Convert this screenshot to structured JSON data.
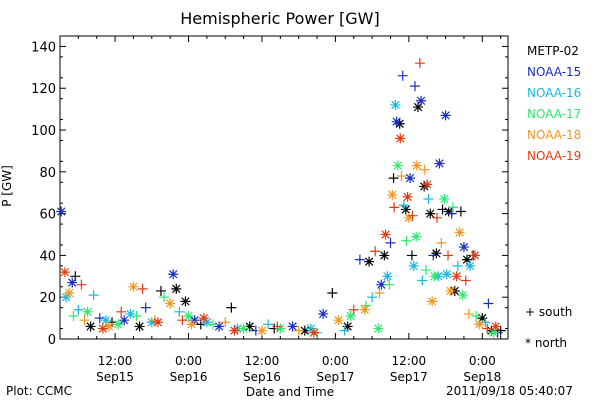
{
  "chart_data": {
    "type": "scatter",
    "title": "Hemispheric Power [GW]",
    "xlabel": "Date and Time",
    "ylabel": "P [GW]",
    "ylim": [
      0,
      145
    ],
    "xlim_hours_label_note": "",
    "yticks": [
      0,
      20,
      40,
      60,
      80,
      100,
      120,
      140
    ],
    "xticks": [
      {
        "h": 12,
        "time": "12:00",
        "date": "Sep15"
      },
      {
        "h": 24,
        "time": "0:00",
        "date": "Sep16"
      },
      {
        "h": 36,
        "time": "12:00",
        "date": "Sep16"
      },
      {
        "h": 48,
        "time": "0:00",
        "date": "Sep17"
      },
      {
        "h": 60,
        "time": "12:00",
        "date": "Sep17"
      },
      {
        "h": 72,
        "time": "0:00",
        "date": "Sep18"
      }
    ],
    "x_range_hours": [
      3.0,
      76.2
    ],
    "legend_position": "right",
    "series": [
      {
        "name": "METP-02",
        "color": "#000000",
        "points": [
          {
            "x": 5.5,
            "y": 30,
            "m": "+"
          },
          {
            "x": 8.0,
            "y": 6,
            "m": "*"
          },
          {
            "x": 11.5,
            "y": 8,
            "m": "+"
          },
          {
            "x": 16.0,
            "y": 6,
            "m": "*"
          },
          {
            "x": 19.5,
            "y": 23,
            "m": "+"
          },
          {
            "x": 22.0,
            "y": 24,
            "m": "*"
          },
          {
            "x": 23.5,
            "y": 18,
            "m": "*"
          },
          {
            "x": 26.0,
            "y": 7,
            "m": "+"
          },
          {
            "x": 31.0,
            "y": 15,
            "m": "+"
          },
          {
            "x": 34.0,
            "y": 6,
            "m": "*"
          },
          {
            "x": 38.0,
            "y": 5,
            "m": "+"
          },
          {
            "x": 43.0,
            "y": 4,
            "m": "*"
          },
          {
            "x": 47.5,
            "y": 22,
            "m": "+"
          },
          {
            "x": 50.0,
            "y": 6,
            "m": "*"
          },
          {
            "x": 53.5,
            "y": 37,
            "m": "*"
          },
          {
            "x": 56.0,
            "y": 40,
            "m": "*"
          },
          {
            "x": 57.5,
            "y": 77,
            "m": "+"
          },
          {
            "x": 58.5,
            "y": 103,
            "m": "*"
          },
          {
            "x": 59.5,
            "y": 62,
            "m": "*"
          },
          {
            "x": 60.5,
            "y": 40,
            "m": "+"
          },
          {
            "x": 61.5,
            "y": 111,
            "m": "*"
          },
          {
            "x": 62.5,
            "y": 73,
            "m": "*"
          },
          {
            "x": 63.5,
            "y": 60,
            "m": "*"
          },
          {
            "x": 64.5,
            "y": 41,
            "m": "*"
          },
          {
            "x": 65.5,
            "y": 62,
            "m": "+"
          },
          {
            "x": 66.5,
            "y": 61,
            "m": "*"
          },
          {
            "x": 67.5,
            "y": 23,
            "m": "*"
          },
          {
            "x": 68.5,
            "y": 61,
            "m": "+"
          },
          {
            "x": 69.5,
            "y": 38,
            "m": "*"
          },
          {
            "x": 70.5,
            "y": 40,
            "m": "+"
          },
          {
            "x": 72.0,
            "y": 10,
            "m": "*"
          },
          {
            "x": 73.5,
            "y": 4,
            "m": "*"
          },
          {
            "x": 75.0,
            "y": 4,
            "m": "+"
          }
        ]
      },
      {
        "name": "NOAA-15",
        "color": "#1a2fc0",
        "points": [
          {
            "x": 3.2,
            "y": 61,
            "m": "*"
          },
          {
            "x": 5.0,
            "y": 27,
            "m": "*"
          },
          {
            "x": 9.5,
            "y": 10,
            "m": "+"
          },
          {
            "x": 13.5,
            "y": 9,
            "m": "*"
          },
          {
            "x": 17.0,
            "y": 15,
            "m": "+"
          },
          {
            "x": 21.5,
            "y": 31,
            "m": "*"
          },
          {
            "x": 25.0,
            "y": 9,
            "m": "*"
          },
          {
            "x": 29.0,
            "y": 6,
            "m": "*"
          },
          {
            "x": 35.0,
            "y": 4,
            "m": "+"
          },
          {
            "x": 41.0,
            "y": 6,
            "m": "*"
          },
          {
            "x": 46.0,
            "y": 12,
            "m": "*"
          },
          {
            "x": 52.0,
            "y": 38,
            "m": "+"
          },
          {
            "x": 55.5,
            "y": 26,
            "m": "*"
          },
          {
            "x": 57.0,
            "y": 46,
            "m": "+"
          },
          {
            "x": 58.0,
            "y": 104,
            "m": "*"
          },
          {
            "x": 59.0,
            "y": 126,
            "m": "+"
          },
          {
            "x": 60.2,
            "y": 77,
            "m": "*"
          },
          {
            "x": 61.0,
            "y": 121,
            "m": "+"
          },
          {
            "x": 62.0,
            "y": 114,
            "m": "*"
          },
          {
            "x": 64.0,
            "y": 40,
            "m": "+"
          },
          {
            "x": 65.0,
            "y": 84,
            "m": "*"
          },
          {
            "x": 66.0,
            "y": 107,
            "m": "*"
          },
          {
            "x": 67.0,
            "y": 60,
            "m": "+"
          },
          {
            "x": 69.0,
            "y": 44,
            "m": "*"
          },
          {
            "x": 73.0,
            "y": 17,
            "m": "+"
          },
          {
            "x": 74.5,
            "y": 3,
            "m": "+"
          }
        ]
      },
      {
        "name": "NOAA-16",
        "color": "#1ab8e0",
        "points": [
          {
            "x": 4.0,
            "y": 20,
            "m": "*"
          },
          {
            "x": 6.0,
            "y": 14,
            "m": "+"
          },
          {
            "x": 8.5,
            "y": 21,
            "m": "+"
          },
          {
            "x": 10.5,
            "y": 9,
            "m": "*"
          },
          {
            "x": 14.5,
            "y": 12,
            "m": "*"
          },
          {
            "x": 18.0,
            "y": 8,
            "m": "*"
          },
          {
            "x": 22.5,
            "y": 13,
            "m": "+"
          },
          {
            "x": 27.0,
            "y": 8,
            "m": "*"
          },
          {
            "x": 32.0,
            "y": 5,
            "m": "*"
          },
          {
            "x": 37.0,
            "y": 7,
            "m": "+"
          },
          {
            "x": 44.0,
            "y": 5,
            "m": "*"
          },
          {
            "x": 49.5,
            "y": 4,
            "m": "+"
          },
          {
            "x": 54.0,
            "y": 20,
            "m": "+"
          },
          {
            "x": 56.5,
            "y": 30,
            "m": "*"
          },
          {
            "x": 57.8,
            "y": 112,
            "m": "*"
          },
          {
            "x": 59.2,
            "y": 64,
            "m": "+"
          },
          {
            "x": 60.8,
            "y": 35,
            "m": "*"
          },
          {
            "x": 62.2,
            "y": 28,
            "m": "+"
          },
          {
            "x": 63.2,
            "y": 67,
            "m": "+"
          },
          {
            "x": 64.8,
            "y": 30,
            "m": "*"
          },
          {
            "x": 66.2,
            "y": 31,
            "m": "*"
          },
          {
            "x": 68.0,
            "y": 35,
            "m": "+"
          },
          {
            "x": 70.0,
            "y": 35,
            "m": "*"
          },
          {
            "x": 72.5,
            "y": 8,
            "m": "+"
          }
        ]
      },
      {
        "name": "NOAA-17",
        "color": "#2ee870",
        "points": [
          {
            "x": 5.2,
            "y": 11,
            "m": "+"
          },
          {
            "x": 7.5,
            "y": 13,
            "m": "*"
          },
          {
            "x": 12.5,
            "y": 7,
            "m": "*"
          },
          {
            "x": 15.5,
            "y": 11,
            "m": "+"
          },
          {
            "x": 20.0,
            "y": 20,
            "m": "+"
          },
          {
            "x": 24.0,
            "y": 11,
            "m": "*"
          },
          {
            "x": 28.0,
            "y": 7,
            "m": "+"
          },
          {
            "x": 33.0,
            "y": 5,
            "m": "*"
          },
          {
            "x": 39.0,
            "y": 5,
            "m": "*"
          },
          {
            "x": 45.0,
            "y": 3,
            "m": "+"
          },
          {
            "x": 50.5,
            "y": 11,
            "m": "*"
          },
          {
            "x": 53.0,
            "y": 16,
            "m": "+"
          },
          {
            "x": 55.0,
            "y": 5,
            "m": "*"
          },
          {
            "x": 56.8,
            "y": 26,
            "m": "+"
          },
          {
            "x": 58.2,
            "y": 83,
            "m": "*"
          },
          {
            "x": 59.6,
            "y": 47,
            "m": "+"
          },
          {
            "x": 61.2,
            "y": 49,
            "m": "*"
          },
          {
            "x": 62.8,
            "y": 33,
            "m": "+"
          },
          {
            "x": 64.2,
            "y": 30,
            "m": "*"
          },
          {
            "x": 65.8,
            "y": 67,
            "m": "*"
          },
          {
            "x": 67.2,
            "y": 63,
            "m": "+"
          },
          {
            "x": 68.8,
            "y": 21,
            "m": "*"
          },
          {
            "x": 71.0,
            "y": 11,
            "m": "+"
          },
          {
            "x": 73.8,
            "y": 3,
            "m": "*"
          }
        ]
      },
      {
        "name": "NOAA-18",
        "color": "#f0961e",
        "points": [
          {
            "x": 4.5,
            "y": 22,
            "m": "*"
          },
          {
            "x": 7.0,
            "y": 9,
            "m": "+"
          },
          {
            "x": 11.0,
            "y": 6,
            "m": "*"
          },
          {
            "x": 15.0,
            "y": 25,
            "m": "*"
          },
          {
            "x": 18.5,
            "y": 9,
            "m": "+"
          },
          {
            "x": 21.0,
            "y": 17,
            "m": "*"
          },
          {
            "x": 24.5,
            "y": 7,
            "m": "*"
          },
          {
            "x": 30.0,
            "y": 8,
            "m": "+"
          },
          {
            "x": 36.0,
            "y": 4,
            "m": "*"
          },
          {
            "x": 42.0,
            "y": 4,
            "m": "+"
          },
          {
            "x": 48.5,
            "y": 9,
            "m": "*"
          },
          {
            "x": 52.8,
            "y": 14,
            "m": "*"
          },
          {
            "x": 55.2,
            "y": 22,
            "m": "+"
          },
          {
            "x": 57.3,
            "y": 69,
            "m": "*"
          },
          {
            "x": 58.8,
            "y": 78,
            "m": "+"
          },
          {
            "x": 60.0,
            "y": 58,
            "m": "*"
          },
          {
            "x": 61.3,
            "y": 83,
            "m": "*"
          },
          {
            "x": 62.6,
            "y": 81,
            "m": "+"
          },
          {
            "x": 63.8,
            "y": 18,
            "m": "*"
          },
          {
            "x": 65.3,
            "y": 46,
            "m": "+"
          },
          {
            "x": 66.8,
            "y": 23,
            "m": "*"
          },
          {
            "x": 68.3,
            "y": 51,
            "m": "*"
          },
          {
            "x": 69.8,
            "y": 12,
            "m": "+"
          },
          {
            "x": 71.5,
            "y": 7,
            "m": "*"
          }
        ]
      },
      {
        "name": "NOAA-19",
        "color": "#e03c14",
        "points": [
          {
            "x": 3.8,
            "y": 32,
            "m": "*"
          },
          {
            "x": 6.5,
            "y": 26,
            "m": "+"
          },
          {
            "x": 10.0,
            "y": 5,
            "m": "*"
          },
          {
            "x": 13.0,
            "y": 13,
            "m": "+"
          },
          {
            "x": 16.5,
            "y": 24,
            "m": "+"
          },
          {
            "x": 19.0,
            "y": 8,
            "m": "*"
          },
          {
            "x": 23.0,
            "y": 9,
            "m": "+"
          },
          {
            "x": 26.5,
            "y": 10,
            "m": "*"
          },
          {
            "x": 31.5,
            "y": 4,
            "m": "*"
          },
          {
            "x": 38.5,
            "y": 6,
            "m": "+"
          },
          {
            "x": 44.5,
            "y": 3,
            "m": "*"
          },
          {
            "x": 51.0,
            "y": 14,
            "m": "+"
          },
          {
            "x": 54.5,
            "y": 42,
            "m": "+"
          },
          {
            "x": 56.2,
            "y": 50,
            "m": "*"
          },
          {
            "x": 57.6,
            "y": 63,
            "m": "+"
          },
          {
            "x": 58.6,
            "y": 96,
            "m": "*"
          },
          {
            "x": 59.8,
            "y": 68,
            "m": "*"
          },
          {
            "x": 60.6,
            "y": 59,
            "m": "+"
          },
          {
            "x": 61.8,
            "y": 132,
            "m": "+"
          },
          {
            "x": 63.0,
            "y": 74,
            "m": "*"
          },
          {
            "x": 64.6,
            "y": 58,
            "m": "+"
          },
          {
            "x": 66.4,
            "y": 40,
            "m": "+"
          },
          {
            "x": 67.8,
            "y": 30,
            "m": "*"
          },
          {
            "x": 69.3,
            "y": 28,
            "m": "+"
          },
          {
            "x": 70.8,
            "y": 40,
            "m": "*"
          },
          {
            "x": 72.8,
            "y": 5,
            "m": "+"
          },
          {
            "x": 74.2,
            "y": 6,
            "m": "*"
          }
        ]
      }
    ],
    "marker_legend": [
      {
        "symbol": "+",
        "label": "south"
      },
      {
        "symbol": "*",
        "label": "north"
      }
    ]
  },
  "footer": {
    "left": "Plot: CCMC",
    "right": "2011/09/18 05:40:07"
  }
}
